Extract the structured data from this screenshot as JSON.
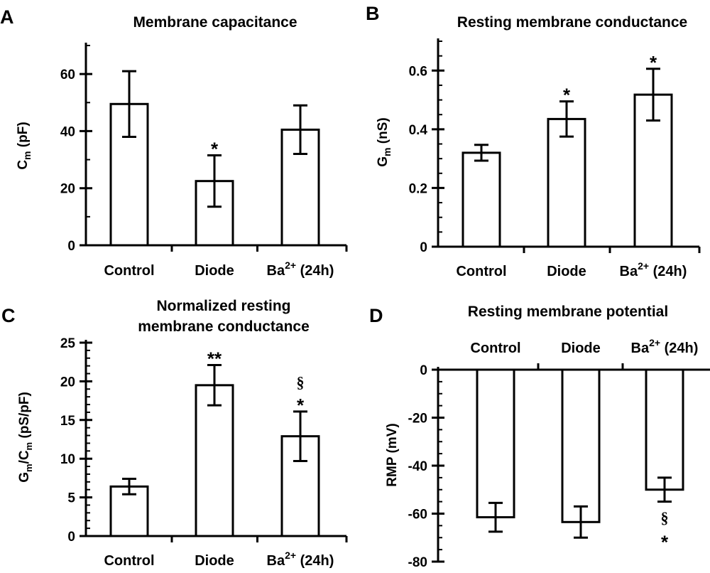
{
  "chart_data": [
    {
      "panel": "A",
      "type": "bar",
      "title": [
        "Membrane capacitance"
      ],
      "ylabel": {
        "main": "C",
        "sub": "m",
        "unit": " (pF)"
      },
      "categories": [
        {
          "base": "Control",
          "sup": "",
          "rest": ""
        },
        {
          "base": "Diode",
          "sup": "",
          "rest": ""
        },
        {
          "base": "Ba",
          "sup": "2+",
          "rest": " (24h)"
        }
      ],
      "values": [
        49.5,
        22.5,
        40.5
      ],
      "errors": [
        11.5,
        9.0,
        8.5
      ],
      "annotations": [
        [],
        [
          "*"
        ],
        []
      ],
      "ylim": [
        0,
        70
      ],
      "yticks": [
        0,
        20,
        40,
        60
      ],
      "yticklabels": [
        "0",
        "20",
        "40",
        "60"
      ],
      "minor_step": 10
    },
    {
      "panel": "B",
      "type": "bar",
      "title": [
        "Resting membrane conductance"
      ],
      "ylabel": {
        "main": "G",
        "sub": "m",
        "unit": " (nS)"
      },
      "categories": [
        {
          "base": "Control",
          "sup": "",
          "rest": ""
        },
        {
          "base": "Diode",
          "sup": "",
          "rest": ""
        },
        {
          "base": "Ba",
          "sup": "2+",
          "rest": " (24h)"
        }
      ],
      "values": [
        0.32,
        0.435,
        0.518
      ],
      "errors": [
        0.027,
        0.06,
        0.088
      ],
      "annotations": [
        [],
        [
          "*"
        ],
        [
          "*"
        ]
      ],
      "ylim": [
        0,
        0.7
      ],
      "yticks": [
        0,
        0.2,
        0.4,
        0.6
      ],
      "yticklabels": [
        "0",
        "0.2",
        "0.4",
        "0.6"
      ],
      "minor_step": 0.05
    },
    {
      "panel": "C",
      "type": "bar",
      "title": [
        "Normalized resting",
        "membrane conductance"
      ],
      "ylabel": {
        "main": "G",
        "sub": "m",
        "unit": "/C",
        "sub2": "m",
        "unit2": " (pS/pF)"
      },
      "categories": [
        {
          "base": "Control",
          "sup": "",
          "rest": ""
        },
        {
          "base": "Diode",
          "sup": "",
          "rest": ""
        },
        {
          "base": "Ba",
          "sup": "2+",
          "rest": " (24h)"
        }
      ],
      "values": [
        6.4,
        19.5,
        12.9
      ],
      "errors": [
        1.0,
        2.6,
        3.2
      ],
      "annotations": [
        [],
        [
          "**"
        ],
        [
          "§",
          "*"
        ]
      ],
      "ylim": [
        0,
        25
      ],
      "yticks": [
        0,
        5,
        10,
        15,
        20,
        25
      ],
      "yticklabels": [
        "0",
        "5",
        "10",
        "15",
        "20",
        "25"
      ],
      "minor_step": 1
    },
    {
      "panel": "D",
      "type": "bar",
      "title": [
        "Resting membrane potential"
      ],
      "ylabel": {
        "main": "RMP",
        "sub": "",
        "unit": " (mV)"
      },
      "categories": [
        {
          "base": "Control",
          "sup": "",
          "rest": ""
        },
        {
          "base": "Diode",
          "sup": "",
          "rest": ""
        },
        {
          "base": "Ba",
          "sup": "2+",
          "rest": " (24h)"
        }
      ],
      "values": [
        -61.5,
        -63.5,
        -50.0
      ],
      "errors": [
        6.0,
        6.5,
        5.0
      ],
      "annotations": [
        [],
        [],
        [
          "§",
          "*"
        ]
      ],
      "ylim": [
        -80,
        0
      ],
      "yticks": [
        0,
        -20,
        -40,
        -60,
        -80
      ],
      "yticklabels": [
        "0",
        "-20",
        "-40",
        "-60",
        "-80"
      ],
      "minor_step": 5,
      "category_labels_position": "top"
    }
  ]
}
